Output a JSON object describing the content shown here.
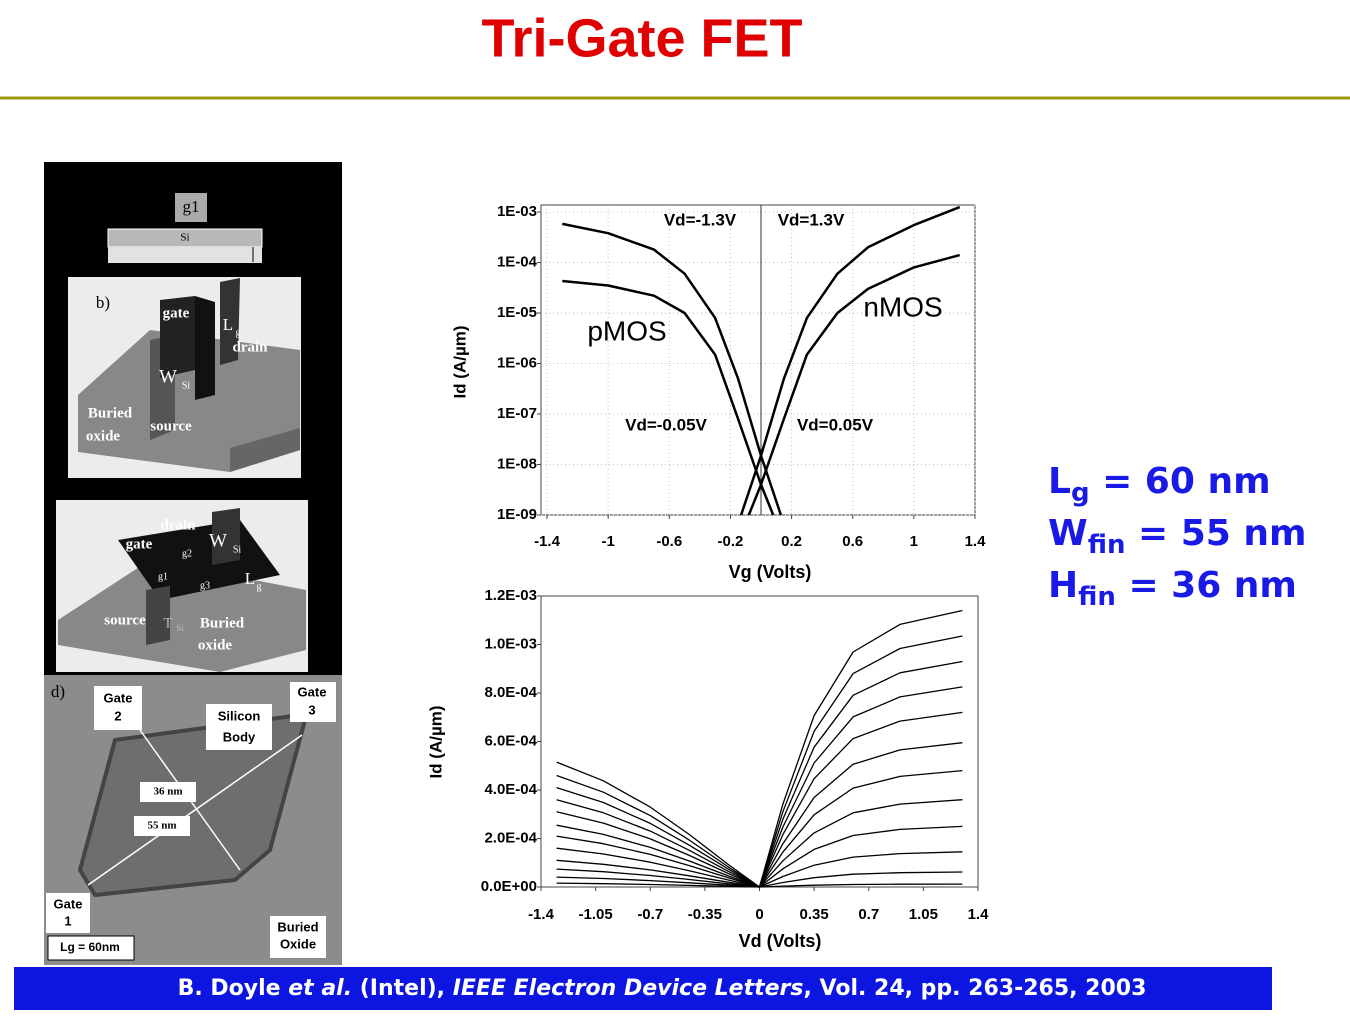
{
  "title": "Tri-Gate FET",
  "figure": {
    "labels": [
      "g1",
      "Si",
      "b)",
      "gate",
      "L",
      "g",
      "drain",
      "W",
      "Si",
      "Buried",
      "oxide",
      "source",
      "drain",
      "gate",
      "g2",
      "W",
      "Si",
      "g1",
      "g3",
      "L",
      "g",
      "source",
      "T",
      "Si",
      "Buried",
      "oxide",
      "d)",
      "Gate",
      "2",
      "Silicon",
      "Body",
      "Gate",
      "3",
      "36 nm",
      "55 nm",
      "Gate",
      "1",
      "Buried",
      "Oxide",
      "Lg = 60nm"
    ]
  },
  "chart_data": [
    {
      "type": "line",
      "log_y": true,
      "grid": true,
      "vline": 0,
      "xlabel": "Vg (Volts)",
      "ylabel": "Id (A/µm)",
      "xlim": [
        -1.4,
        1.4
      ],
      "xticks": [
        -1.4,
        -1,
        -0.6,
        -0.2,
        0.2,
        0.6,
        1,
        1.4
      ],
      "ylim": [
        1e-09,
        0.001
      ],
      "yticks": [
        {
          "value": 1e-09,
          "label": "1E-09"
        },
        {
          "value": 1e-08,
          "label": "1E-08"
        },
        {
          "value": 1e-07,
          "label": "1E-07"
        },
        {
          "value": 1e-06,
          "label": "1E-06"
        },
        {
          "value": 1e-05,
          "label": "1E-05"
        },
        {
          "value": 0.0001,
          "label": "1E-04"
        },
        {
          "value": 0.001,
          "label": "1E-03"
        }
      ],
      "annotations": [
        "Vd=-1.3V",
        "Vd=1.3V",
        "nMOS",
        "pMOS",
        "Vd=-0.05V",
        "Vd=0.05V"
      ],
      "series": [
        {
          "color": "#000000",
          "x": [
            -1.3,
            -1.0,
            -0.7,
            -0.5,
            -0.3,
            -0.15,
            0,
            0.13
          ],
          "values": [
            0.00058,
            0.00038,
            0.00018,
            6e-05,
            8e-06,
            5e-07,
            1.5e-08,
            1e-09
          ]
        },
        {
          "color": "#000000",
          "x": [
            -1.3,
            -1.0,
            -0.7,
            -0.5,
            -0.3,
            -0.15,
            0,
            0.08
          ],
          "values": [
            4.3e-05,
            3.5e-05,
            2.2e-05,
            1e-05,
            1.5e-06,
            8e-08,
            4e-09,
            1e-09
          ]
        },
        {
          "color": "#000000",
          "x": [
            -0.13,
            0,
            0.15,
            0.3,
            0.5,
            0.7,
            1.0,
            1.3
          ],
          "values": [
            1e-09,
            1.5e-08,
            5e-07,
            8e-06,
            6e-05,
            0.0002,
            0.00055,
            0.00125
          ]
        },
        {
          "color": "#000000",
          "x": [
            -0.08,
            0,
            0.15,
            0.3,
            0.5,
            0.7,
            1.0,
            1.3
          ],
          "values": [
            1e-09,
            4e-09,
            8e-08,
            1.5e-06,
            1e-05,
            3e-05,
            8e-05,
            0.00014
          ]
        }
      ]
    },
    {
      "type": "line",
      "log_y": false,
      "grid": false,
      "xlabel": "Vd (Volts)",
      "ylabel": "Id (A/µm)",
      "xlim": [
        -1.4,
        1.4
      ],
      "xticks": [
        -1.4,
        -1.05,
        -0.7,
        -0.35,
        0,
        0.35,
        0.7,
        1.05,
        1.4
      ],
      "ylim": [
        0,
        0.0012
      ],
      "yticks": [
        {
          "value": 0,
          "label": "0.0E+00"
        },
        {
          "value": 0.0002,
          "label": "2.0E-04"
        },
        {
          "value": 0.0004,
          "label": "4.0E-04"
        },
        {
          "value": 0.0006,
          "label": "6.0E-04"
        },
        {
          "value": 0.0008,
          "label": "8.0E-04"
        },
        {
          "value": 0.001,
          "label": "1.0E-03"
        },
        {
          "value": 0.0012,
          "label": "1.2E-03"
        }
      ],
      "series": [
        {
          "color": "#000000",
          "x": [
            0,
            0.15,
            0.35,
            0.6,
            0.9,
            1.3
          ],
          "values": [
            0,
            0.000342,
            0.000707,
            0.000969,
            0.001083,
            0.00114
          ]
        },
        {
          "color": "#000000",
          "x": [
            0,
            0.15,
            0.35,
            0.6,
            0.9,
            1.3
          ],
          "values": [
            0,
            0.0003105,
            0.0006417,
            0.0008798,
            0.0009833,
            0.001035
          ]
        },
        {
          "color": "#000000",
          "x": [
            0,
            0.15,
            0.35,
            0.6,
            0.9,
            1.3
          ],
          "values": [
            0,
            0.000279,
            0.0005766,
            0.0007905,
            0.0008835,
            0.00093
          ]
        },
        {
          "color": "#000000",
          "x": [
            0,
            0.15,
            0.35,
            0.6,
            0.9,
            1.3
          ],
          "values": [
            0,
            0.0002475,
            0.0005115,
            0.0007013,
            0.0007838,
            0.000825
          ]
        },
        {
          "color": "#000000",
          "x": [
            0,
            0.15,
            0.35,
            0.6,
            0.9,
            1.3
          ],
          "values": [
            0,
            0.000216,
            0.0004464,
            0.000612,
            0.000684,
            0.00072
          ]
        },
        {
          "color": "#000000",
          "x": [
            0,
            0.15,
            0.35,
            0.6,
            0.9,
            1.3
          ],
          "values": [
            0,
            0.0001785,
            0.0003689,
            0.0005058,
            0.0005653,
            0.000595
          ]
        },
        {
          "color": "#000000",
          "x": [
            0,
            0.15,
            0.35,
            0.6,
            0.9,
            1.3
          ],
          "values": [
            0,
            0.000144,
            0.0002976,
            0.000408,
            0.000456,
            0.00048
          ]
        },
        {
          "color": "#000000",
          "x": [
            0,
            0.15,
            0.35,
            0.6,
            0.9,
            1.3
          ],
          "values": [
            0,
            0.000108,
            0.0002232,
            0.000306,
            0.000342,
            0.00036
          ]
        },
        {
          "color": "#000000",
          "x": [
            0,
            0.15,
            0.35,
            0.6,
            0.9,
            1.3
          ],
          "values": [
            0,
            7.5e-05,
            0.000155,
            0.0002125,
            0.0002375,
            0.00025
          ]
        },
        {
          "color": "#000000",
          "x": [
            0,
            0.15,
            0.35,
            0.6,
            0.9,
            1.3
          ],
          "values": [
            0,
            4.35e-05,
            8.99e-05,
            0.0001233,
            0.0001378,
            0.000145
          ]
        },
        {
          "color": "#000000",
          "x": [
            0,
            0.15,
            0.35,
            0.6,
            0.9,
            1.3
          ],
          "values": [
            0,
            1.86e-05,
            3.84e-05,
            5.27e-05,
            5.89e-05,
            6.2e-05
          ]
        },
        {
          "color": "#000000",
          "x": [
            0,
            0.15,
            0.35,
            0.6,
            0.9,
            1.3
          ],
          "values": [
            0,
            3.6e-06,
            7.4e-06,
            1.02e-05,
            1.14e-05,
            1.2e-05
          ]
        },
        {
          "color": "#000000",
          "x": [
            -1.3,
            -1.0,
            -0.7,
            -0.45,
            -0.2,
            0
          ],
          "values": [
            0.000515,
            0.0004378,
            0.0003296,
            0.0002163,
            9.27e-05,
            0
          ]
        },
        {
          "color": "#000000",
          "x": [
            -1.3,
            -1.0,
            -0.7,
            -0.45,
            -0.2,
            0
          ],
          "values": [
            0.00046,
            0.000391,
            0.0002944,
            0.0001932,
            8.28e-05,
            0
          ]
        },
        {
          "color": "#000000",
          "x": [
            -1.3,
            -1.0,
            -0.7,
            -0.45,
            -0.2,
            0
          ],
          "values": [
            0.00041,
            0.0003485,
            0.0002624,
            0.0001722,
            7.38e-05,
            0
          ]
        },
        {
          "color": "#000000",
          "x": [
            -1.3,
            -1.0,
            -0.7,
            -0.45,
            -0.2,
            0
          ],
          "values": [
            0.00036,
            0.000306,
            0.0002304,
            0.0001512,
            6.48e-05,
            0
          ]
        },
        {
          "color": "#000000",
          "x": [
            -1.3,
            -1.0,
            -0.7,
            -0.45,
            -0.2,
            0
          ],
          "values": [
            0.00031,
            0.0002635,
            0.0001984,
            0.0001302,
            5.58e-05,
            0
          ]
        },
        {
          "color": "#000000",
          "x": [
            -1.3,
            -1.0,
            -0.7,
            -0.45,
            -0.2,
            0
          ],
          "values": [
            0.000255,
            0.0002168,
            0.0001632,
            0.0001071,
            4.59e-05,
            0
          ]
        },
        {
          "color": "#000000",
          "x": [
            -1.3,
            -1.0,
            -0.7,
            -0.45,
            -0.2,
            0
          ],
          "values": [
            0.00021,
            0.0001785,
            0.0001344,
            8.82e-05,
            3.78e-05,
            0
          ]
        },
        {
          "color": "#000000",
          "x": [
            -1.3,
            -1.0,
            -0.7,
            -0.45,
            -0.2,
            0
          ],
          "values": [
            0.00016,
            0.000136,
            0.0001024,
            6.72e-05,
            2.88e-05,
            0
          ]
        },
        {
          "color": "#000000",
          "x": [
            -1.3,
            -1.0,
            -0.7,
            -0.45,
            -0.2,
            0
          ],
          "values": [
            0.00011,
            9.35e-05,
            7.04e-05,
            4.62e-05,
            1.98e-05,
            0
          ]
        },
        {
          "color": "#000000",
          "x": [
            -1.3,
            -1.0,
            -0.7,
            -0.45,
            -0.2,
            0
          ],
          "values": [
            7.4e-05,
            6.29e-05,
            4.74e-05,
            3.11e-05,
            1.33e-05,
            0
          ]
        },
        {
          "color": "#000000",
          "x": [
            -1.3,
            -1.0,
            -0.7,
            -0.45,
            -0.2,
            0
          ],
          "values": [
            4.1e-05,
            3.49e-05,
            2.62e-05,
            1.72e-05,
            7.4e-06,
            0
          ]
        },
        {
          "color": "#000000",
          "x": [
            -1.3,
            -1.0,
            -0.7,
            -0.45,
            -0.2,
            0
          ],
          "values": [
            1.6e-05,
            1.36e-05,
            1.02e-05,
            6.7e-06,
            2.9e-06,
            0
          ]
        }
      ]
    }
  ],
  "specs": [
    {
      "symbol": "L",
      "sub": "g",
      "value": " = 60 nm"
    },
    {
      "symbol": "W",
      "sub": "fin",
      "value": " = 55 nm"
    },
    {
      "symbol": "H",
      "sub": "fin",
      "value": " = 36 nm"
    }
  ],
  "citation": [
    "B. Doyle ",
    "et al.",
    " (Intel), ",
    "IEEE Electron Device Letters",
    ", Vol. 24, pp. 263-265, 2003"
  ]
}
